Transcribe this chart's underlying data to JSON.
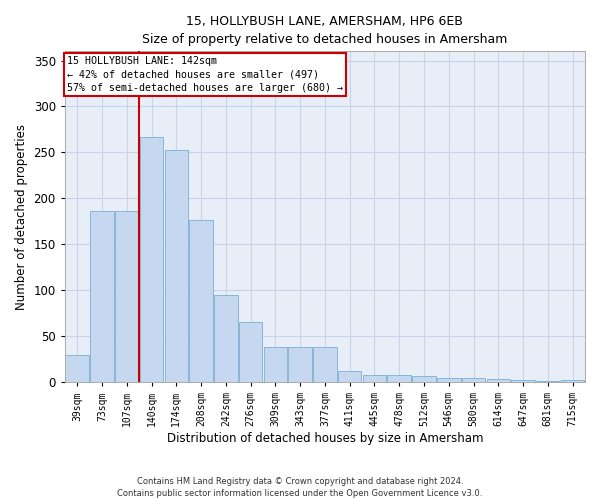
{
  "title": "15, HOLLYBUSH LANE, AMERSHAM, HP6 6EB",
  "subtitle": "Size of property relative to detached houses in Amersham",
  "xlabel": "Distribution of detached houses by size in Amersham",
  "ylabel": "Number of detached properties",
  "categories": [
    "39sqm",
    "73sqm",
    "107sqm",
    "140sqm",
    "174sqm",
    "208sqm",
    "242sqm",
    "276sqm",
    "309sqm",
    "343sqm",
    "377sqm",
    "411sqm",
    "445sqm",
    "478sqm",
    "512sqm",
    "546sqm",
    "580sqm",
    "614sqm",
    "647sqm",
    "681sqm",
    "715sqm"
  ],
  "values": [
    30,
    186,
    186,
    267,
    253,
    177,
    95,
    65,
    38,
    38,
    38,
    12,
    8,
    8,
    7,
    5,
    4,
    3,
    2,
    1,
    2
  ],
  "bar_color": "#c5d8f0",
  "bar_edge_color": "#7aafd4",
  "grid_color": "#c8d4e8",
  "background_color": "#e8eef8",
  "vline_x_index": 3,
  "vline_color": "#cc0000",
  "annotation_lines": [
    "15 HOLLYBUSH LANE: 142sqm",
    "← 42% of detached houses are smaller (497)",
    "57% of semi-detached houses are larger (680) →"
  ],
  "annotation_box_color": "#cc0000",
  "footer_line1": "Contains HM Land Registry data © Crown copyright and database right 2024.",
  "footer_line2": "Contains public sector information licensed under the Open Government Licence v3.0.",
  "ylim": [
    0,
    360
  ],
  "yticks": [
    0,
    50,
    100,
    150,
    200,
    250,
    300,
    350
  ]
}
